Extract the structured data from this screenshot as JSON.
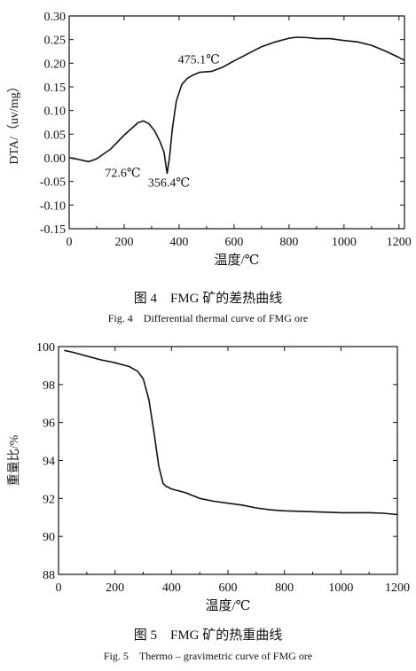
{
  "chart_data": [
    {
      "type": "line",
      "xlabel": "温度/℃",
      "ylabel": "DTA/（uv/mg）",
      "xlim": [
        0,
        1220
      ],
      "ylim": [
        -0.15,
        0.3
      ],
      "xticks": [
        0,
        200,
        400,
        600,
        800,
        1000,
        1200
      ],
      "yticks": [
        0.3,
        0.25,
        0.2,
        0.15,
        0.1,
        0.05,
        0.0,
        -0.05,
        -0.1,
        -0.15
      ],
      "ytick_labels": [
        "0.30",
        "0.25",
        "0.20",
        "0.15",
        "0.10",
        "0.05",
        "0.00",
        "-0.05",
        "-0.10",
        "-0.15"
      ],
      "grid": false,
      "series": [
        {
          "x": [
            0,
            30,
            60,
            72.6,
            100,
            150,
            200,
            250,
            270,
            290,
            310,
            330,
            345,
            356.4,
            365,
            375,
            390,
            410,
            430,
            450,
            475.1,
            500,
            520,
            560,
            600,
            650,
            700,
            750,
            800,
            830,
            870,
            900,
            950,
            1000,
            1050,
            1100,
            1150,
            1200,
            1220
          ],
          "y": [
            0.0,
            -0.003,
            -0.007,
            -0.008,
            -0.002,
            0.018,
            0.048,
            0.074,
            0.078,
            0.072,
            0.058,
            0.035,
            0.012,
            -0.033,
            0.0,
            0.06,
            0.12,
            0.155,
            0.168,
            0.175,
            0.181,
            0.182,
            0.183,
            0.192,
            0.205,
            0.22,
            0.235,
            0.245,
            0.253,
            0.255,
            0.254,
            0.252,
            0.252,
            0.248,
            0.245,
            0.238,
            0.226,
            0.212,
            0.206
          ]
        }
      ],
      "annotations": [
        {
          "text": "72.6℃",
          "x": 72.6,
          "y": -0.008
        },
        {
          "text": "356.4℃",
          "x": 356.4,
          "y": -0.033
        },
        {
          "text": "475.1℃",
          "x": 475.1,
          "y": 0.181
        }
      ],
      "caption_cn": "图 4　FMG 矿的差热曲线",
      "caption_en": "Fig. 4　Differential thermal curve of FMG ore"
    },
    {
      "type": "line",
      "xlabel": "温度/℃",
      "ylabel": "重量比/%",
      "xlim": [
        0,
        1200
      ],
      "ylim": [
        88,
        100
      ],
      "xticks": [
        0,
        200,
        400,
        600,
        800,
        1000,
        1200
      ],
      "yticks": [
        100,
        98,
        96,
        94,
        92,
        90,
        88
      ],
      "ytick_labels": [
        "100",
        "98",
        "96",
        "94",
        "92",
        "90",
        "88"
      ],
      "grid": false,
      "series": [
        {
          "x": [
            20,
            50,
            100,
            150,
            200,
            250,
            280,
            300,
            320,
            340,
            355,
            370,
            380,
            400,
            450,
            500,
            550,
            600,
            650,
            700,
            750,
            800,
            900,
            1000,
            1100,
            1150,
            1200
          ],
          "y": [
            99.8,
            99.7,
            99.5,
            99.3,
            99.15,
            98.95,
            98.7,
            98.3,
            97.2,
            95.3,
            93.7,
            92.8,
            92.65,
            92.5,
            92.3,
            92.0,
            91.85,
            91.75,
            91.65,
            91.5,
            91.4,
            91.35,
            91.3,
            91.25,
            91.25,
            91.22,
            91.15
          ]
        }
      ],
      "caption_cn": "图 5　FMG 矿的热重曲线",
      "caption_en": "Fig. 5　Thermo – gravimetric curve of FMG ore"
    }
  ]
}
